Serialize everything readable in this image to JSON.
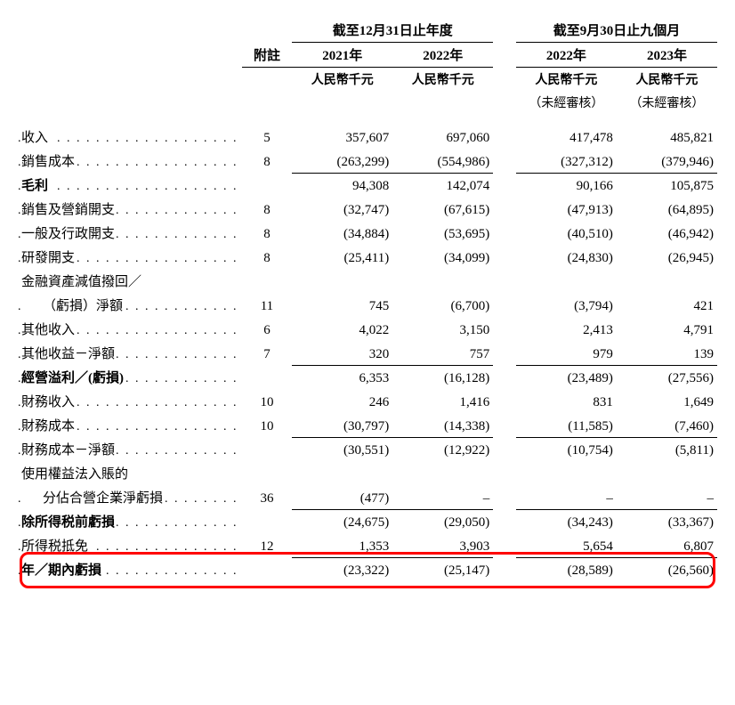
{
  "headers": {
    "group1": "截至12月31日止年度",
    "group2": "截至9月30日止九個月",
    "note": "附註",
    "y2021": "2021年",
    "y2022": "2022年",
    "y2022b": "2022年",
    "y2023": "2023年",
    "unit": "人民幣千元",
    "unaudited": "（未經審核）"
  },
  "rows": {
    "revenue": {
      "label": "收入",
      "note": "5",
      "v": [
        "357,607",
        "697,060",
        "417,478",
        "485,821"
      ]
    },
    "cogs": {
      "label": "銷售成本",
      "note": "8",
      "v": [
        "(263,299)",
        "(554,986)",
        "(327,312)",
        "(379,946)"
      ]
    },
    "gross": {
      "label": "毛利",
      "note": "",
      "v": [
        "94,308",
        "142,074",
        "90,166",
        "105,875"
      ]
    },
    "selling": {
      "label": "銷售及營銷開支",
      "note": "8",
      "v": [
        "(32,747)",
        "(67,615)",
        "(47,913)",
        "(64,895)"
      ]
    },
    "admin": {
      "label": "一般及行政開支",
      "note": "8",
      "v": [
        "(34,884)",
        "(53,695)",
        "(40,510)",
        "(46,942)"
      ]
    },
    "rnd": {
      "label": "研發開支",
      "note": "8",
      "v": [
        "(25,411)",
        "(34,099)",
        "(24,830)",
        "(26,945)"
      ]
    },
    "impair1": {
      "label": "金融資產減值撥回／"
    },
    "impair2": {
      "label": "（虧損）淨額",
      "note": "11",
      "v": [
        "745",
        "(6,700)",
        "(3,794)",
        "421"
      ]
    },
    "otherinc": {
      "label": "其他收入",
      "note": "6",
      "v": [
        "4,022",
        "3,150",
        "2,413",
        "4,791"
      ]
    },
    "othergain": {
      "label": "其他收益－淨額",
      "note": "7",
      "v": [
        "320",
        "757",
        "979",
        "139"
      ]
    },
    "opprofit": {
      "label": "經營溢利／(虧損)",
      "note": "",
      "v": [
        "6,353",
        "(16,128)",
        "(23,489)",
        "(27,556)"
      ]
    },
    "fininc": {
      "label": "財務收入",
      "note": "10",
      "v": [
        "246",
        "1,416",
        "831",
        "1,649"
      ]
    },
    "fincost": {
      "label": "財務成本",
      "note": "10",
      "v": [
        "(30,797)",
        "(14,338)",
        "(11,585)",
        "(7,460)"
      ]
    },
    "finnet": {
      "label": "財務成本－淨額",
      "note": "",
      "v": [
        "(30,551)",
        "(12,922)",
        "(10,754)",
        "(5,811)"
      ]
    },
    "equity1": {
      "label": "使用權益法入賬的"
    },
    "equity2": {
      "label": "分佔合營企業淨虧損",
      "note": "36",
      "v": [
        "(477)",
        "–",
        "–",
        "–"
      ]
    },
    "pretax": {
      "label": "除所得税前虧損",
      "note": "",
      "v": [
        "(24,675)",
        "(29,050)",
        "(34,243)",
        "(33,367)"
      ]
    },
    "taxcredit": {
      "label": "所得税抵免",
      "note": "12",
      "v": [
        "1,353",
        "3,903",
        "5,654",
        "6,807"
      ]
    },
    "periodloss": {
      "label": "年／期內虧損",
      "note": "",
      "v": [
        "(23,322)",
        "(25,147)",
        "(28,589)",
        "(26,560)"
      ]
    }
  },
  "style": {
    "highlight_color": "#ff0000",
    "text_color": "#000000",
    "bg_color": "#ffffff",
    "font_family": "Times New Roman / SimSun",
    "base_font_size": 15
  }
}
